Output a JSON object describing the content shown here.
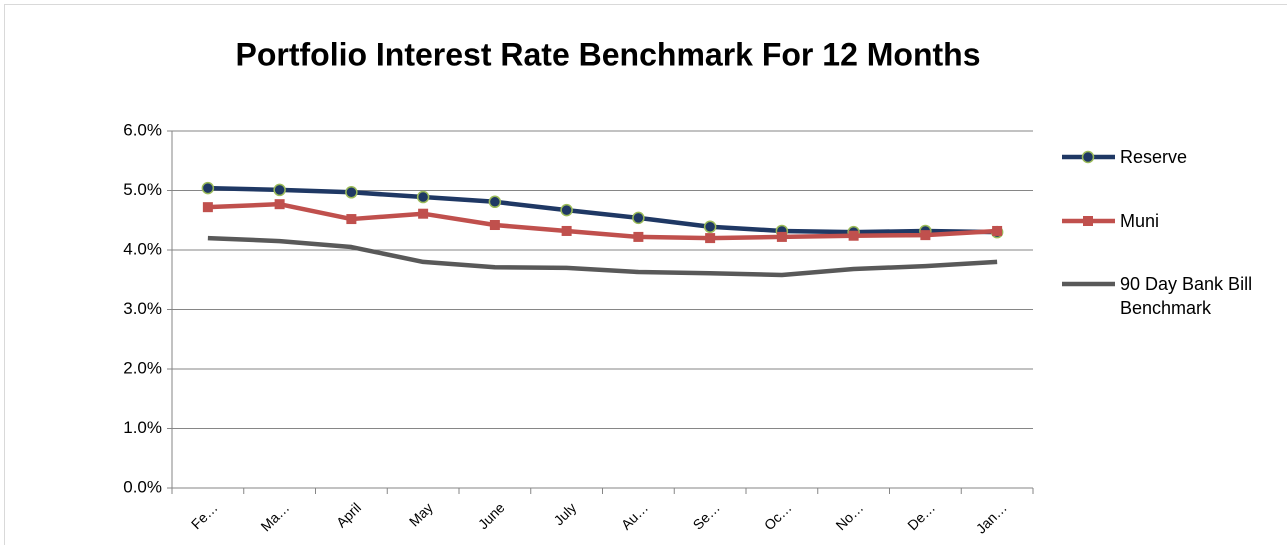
{
  "chart_data": {
    "type": "line",
    "title": "Portfolio Interest Rate Benchmark  For 12 Months",
    "categories": [
      "Fe…",
      "Ma…",
      "April",
      "May",
      "June",
      "July",
      "Au…",
      "Se…",
      "Oc…",
      "No…",
      "De…",
      "Jan…"
    ],
    "series": [
      {
        "name": "Reserve",
        "color": "#1f3864",
        "marker": "circle",
        "marker_edge": "#9bbb59",
        "values": [
          5.04,
          5.01,
          4.97,
          4.89,
          4.81,
          4.67,
          4.54,
          4.39,
          4.32,
          4.3,
          4.32,
          4.3
        ]
      },
      {
        "name": "Muni",
        "color": "#c0504d",
        "marker": "square",
        "values": [
          4.72,
          4.77,
          4.52,
          4.61,
          4.42,
          4.32,
          4.22,
          4.2,
          4.22,
          4.24,
          4.25,
          4.32
        ]
      },
      {
        "name": "90 Day Bank Bill Benchmark",
        "color": "#595959",
        "values": [
          4.2,
          4.15,
          4.05,
          3.8,
          3.71,
          3.7,
          3.63,
          3.61,
          3.58,
          3.68,
          3.73,
          3.8
        ]
      }
    ],
    "ylim": [
      0,
      6
    ],
    "yticks": [
      {
        "value": 0,
        "label": "0.0%"
      },
      {
        "value": 1,
        "label": "1.0%"
      },
      {
        "value": 2,
        "label": "2.0%"
      },
      {
        "value": 3,
        "label": "3.0%"
      },
      {
        "value": 4,
        "label": "4.0%"
      },
      {
        "value": 5,
        "label": "5.0%"
      },
      {
        "value": 6,
        "label": "6.0%"
      }
    ],
    "grid": true,
    "legend": "right"
  }
}
